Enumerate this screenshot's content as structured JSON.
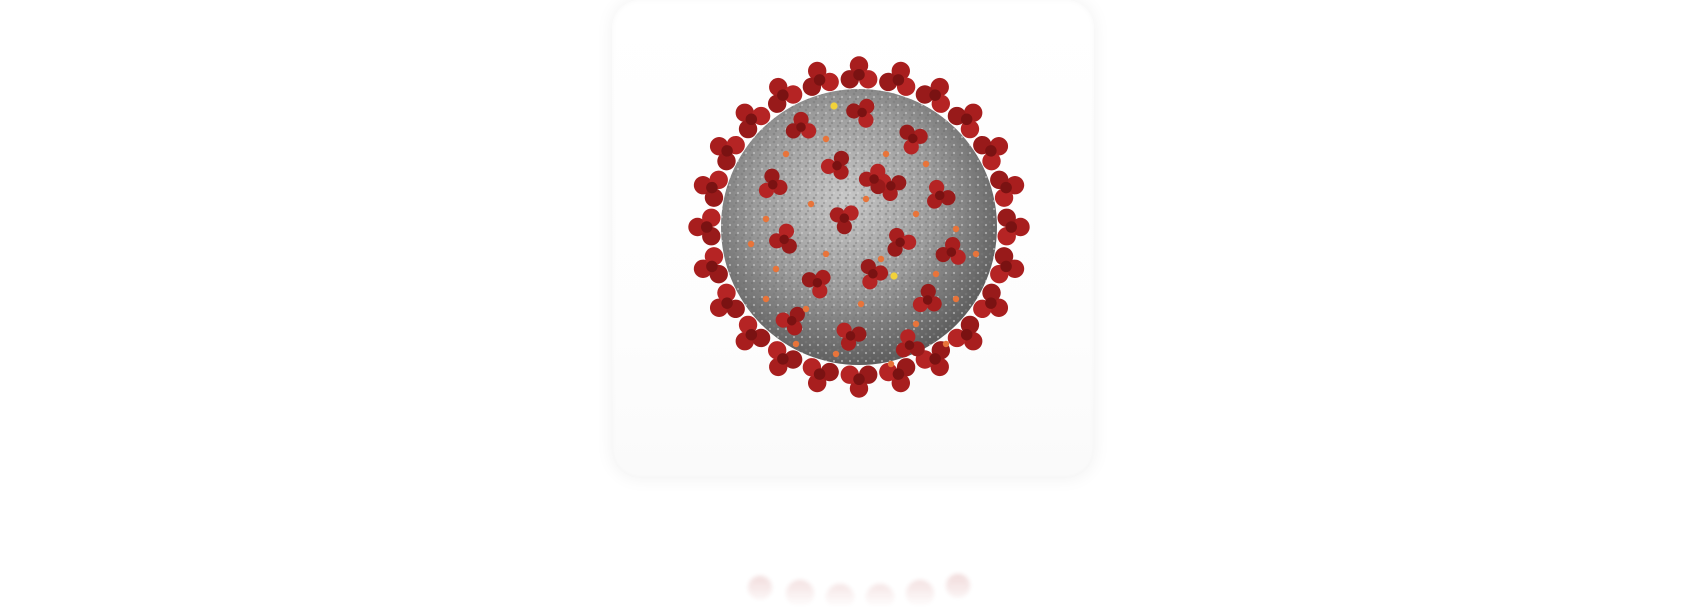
{
  "image": {
    "subject": "coronavirus-illustration",
    "colors": {
      "background": "#ffffff",
      "envelope": "#9b9b9b",
      "envelope_dark": "#6e6e6e",
      "spike": "#a81e1e",
      "spike_dark": "#7a1212",
      "m_protein": "#e8743a",
      "e_protein": "#f2d23a"
    }
  }
}
